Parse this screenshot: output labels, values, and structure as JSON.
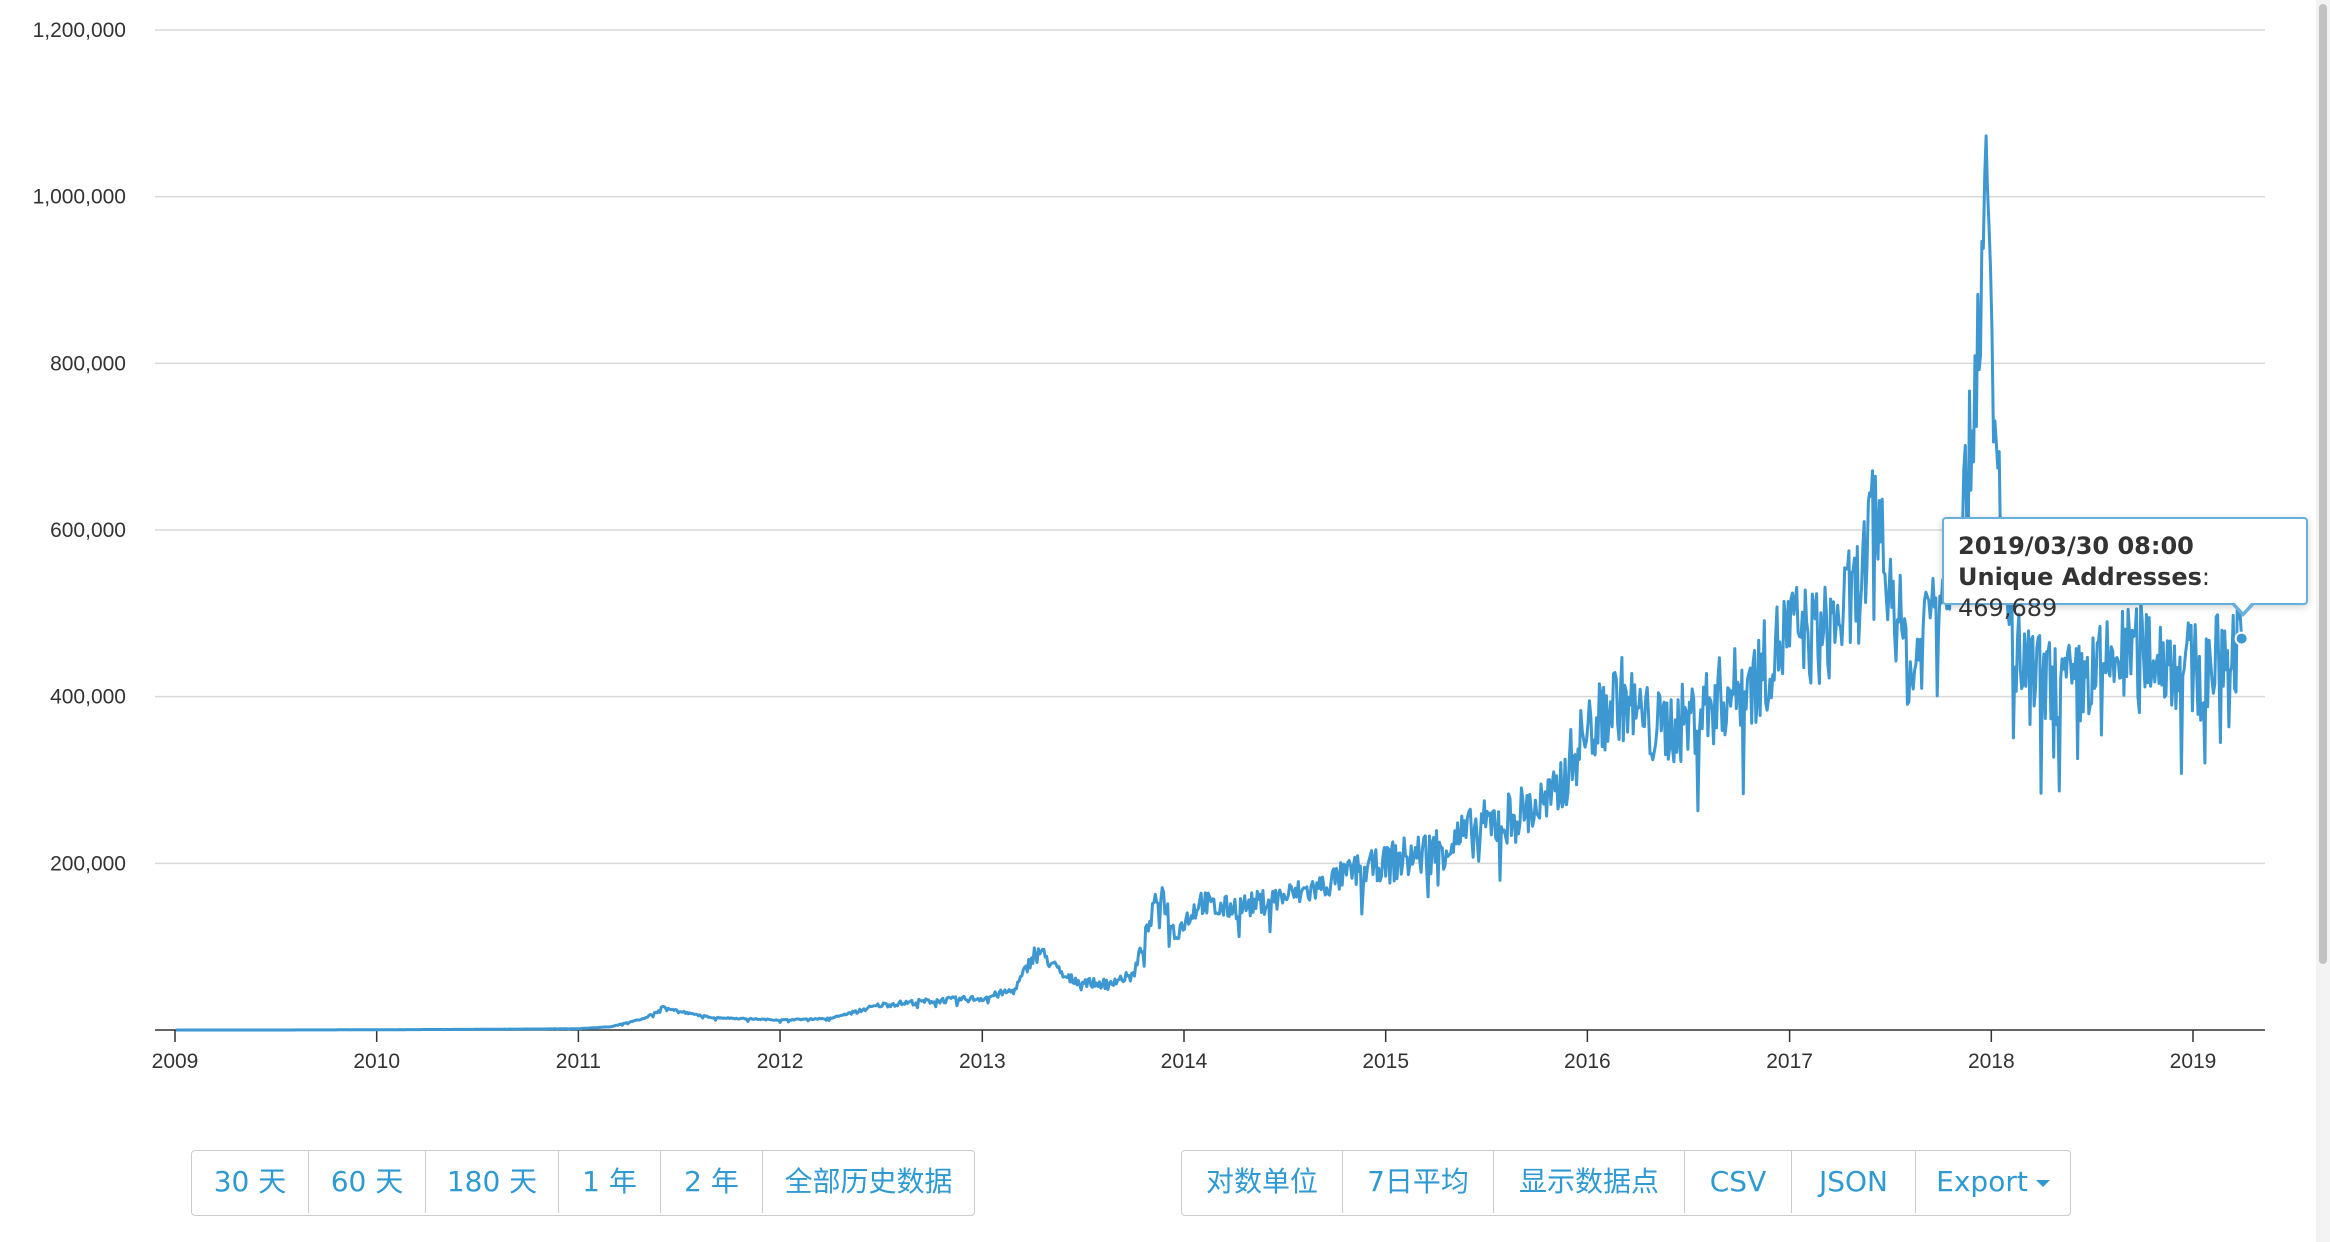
{
  "chart_data": {
    "type": "line",
    "title": "",
    "xlabel": "",
    "ylabel": "",
    "series": [
      {
        "name": "Unique Addresses",
        "color": "#3d97d1",
        "x": [
          "2009-01-03",
          "2009-07-01",
          "2010-01-01",
          "2010-07-01",
          "2011-01-01",
          "2011-03-01",
          "2011-05-01",
          "2011-06-10",
          "2011-07-01",
          "2011-09-01",
          "2012-01-01",
          "2012-04-01",
          "2012-07-01",
          "2012-10-01",
          "2013-01-01",
          "2013-03-01",
          "2013-04-10",
          "2013-06-01",
          "2013-08-01",
          "2013-10-01",
          "2013-11-20",
          "2013-12-15",
          "2014-02-01",
          "2014-03-01",
          "2014-05-01",
          "2014-07-01",
          "2014-09-01",
          "2014-11-01",
          "2015-01-01",
          "2015-03-01",
          "2015-05-01",
          "2015-07-01",
          "2015-09-01",
          "2015-11-01",
          "2015-12-15",
          "2016-01-15",
          "2016-03-01",
          "2016-05-01",
          "2016-07-01",
          "2016-09-01",
          "2016-11-01",
          "2017-01-01",
          "2017-03-01",
          "2017-05-01",
          "2017-06-10",
          "2017-07-15",
          "2017-08-10",
          "2017-09-15",
          "2017-10-15",
          "2017-11-20",
          "2017-12-10",
          "2017-12-25",
          "2018-01-05",
          "2018-02-10",
          "2018-04-01",
          "2018-06-01",
          "2018-08-01",
          "2018-10-01",
          "2018-12-01",
          "2019-01-20",
          "2019-03-30"
        ],
        "y": [
          0,
          0,
          300,
          800,
          1500,
          4000,
          14000,
          29000,
          22000,
          15000,
          12000,
          14000,
          30000,
          35000,
          38000,
          48000,
          98000,
          62000,
          55000,
          65000,
          170000,
          115000,
          155000,
          145000,
          150000,
          160000,
          170000,
          190000,
          200000,
          210000,
          225000,
          245000,
          260000,
          275000,
          340000,
          370000,
          400000,
          360000,
          370000,
          400000,
          420000,
          480000,
          470000,
          520000,
          620000,
          500000,
          420000,
          520000,
          560000,
          650000,
          880000,
          980000,
          720000,
          450000,
          420000,
          410000,
          440000,
          460000,
          440000,
          430000,
          469689
        ]
      }
    ],
    "ylim": [
      0,
      1200000
    ],
    "y_ticks": [
      "200,000",
      "400,000",
      "600,000",
      "800,000",
      "1,000,000",
      "1,200,000"
    ],
    "x_ticks": [
      "2009",
      "2010",
      "2011",
      "2012",
      "2013",
      "2014",
      "2015",
      "2016",
      "2017",
      "2018",
      "2019"
    ],
    "grid": true,
    "legend": "none"
  },
  "tooltip": {
    "date": "2019/03/30 08:00",
    "label": "Unique Addresses",
    "value": "469,689"
  },
  "range_buttons": [
    "30 天",
    "60 天",
    "180 天",
    "1 年",
    "2 年",
    "全部历史数据"
  ],
  "tool_buttons": [
    "对数单位",
    "7日平均",
    "显示数据点",
    "CSV",
    "JSON",
    "Export"
  ]
}
